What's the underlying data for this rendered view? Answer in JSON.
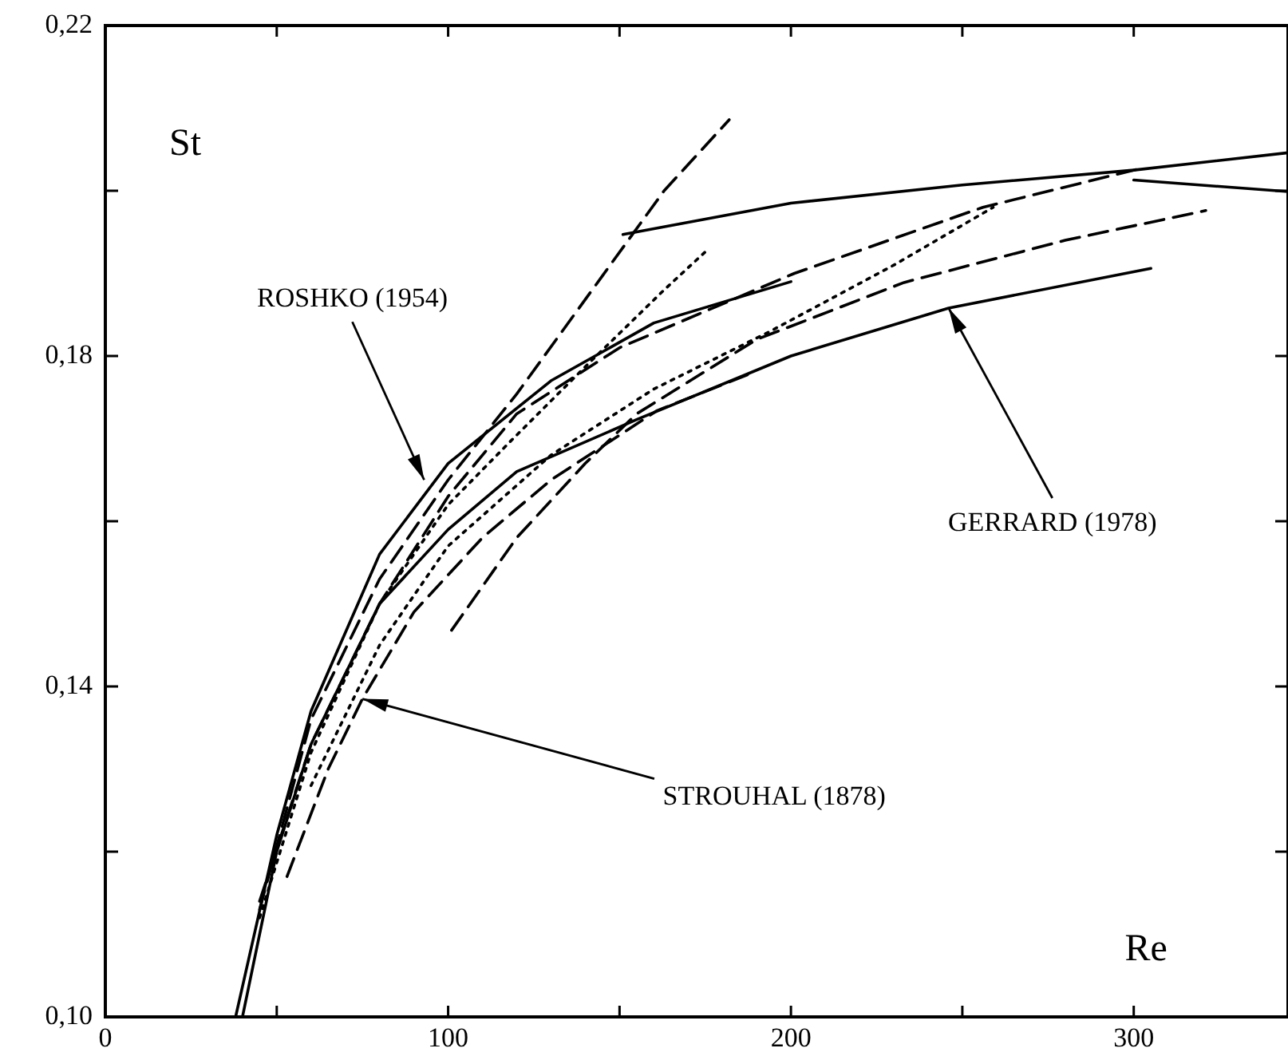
{
  "chart_data": {
    "type": "line",
    "xlabel": "Re",
    "ylabel": "St",
    "xlim": [
      0,
      345
    ],
    "ylim": [
      0.1,
      0.22
    ],
    "xticks": [
      0,
      {
        "value": 50,
        "label": null
      },
      100,
      {
        "value": 150,
        "label": null
      },
      200,
      {
        "value": 250,
        "label": null
      },
      300
    ],
    "yticks": [
      {
        "value": 0.1,
        "label": "0,10"
      },
      {
        "value": 0.12,
        "label": null
      },
      {
        "value": 0.14,
        "label": "0,14"
      },
      {
        "value": 0.16,
        "label": null
      },
      {
        "value": 0.18,
        "label": "0,18"
      },
      {
        "value": 0.2,
        "label": null
      },
      {
        "value": 0.22,
        "label": "0,22"
      }
    ],
    "grid": false,
    "legend": false,
    "marker": "none",
    "series": [
      {
        "color": "#000000",
        "line_style": "solid",
        "x": [
          38,
          50,
          60,
          80,
          100,
          130,
          160,
          200
        ],
        "values": [
          0.1,
          0.122,
          0.137,
          0.156,
          0.167,
          0.177,
          0.184,
          0.189
        ]
      },
      {
        "color": "#000000",
        "line_style": "solid",
        "x": [
          151,
          200,
          250,
          300,
          345
        ],
        "values": [
          0.1947,
          0.1985,
          0.2007,
          0.2025,
          0.2046
        ]
      },
      {
        "color": "#000000",
        "line_style": "solid",
        "x": [
          300,
          345
        ],
        "values": [
          0.2013,
          0.1999
        ]
      },
      {
        "color": "#000000",
        "line_style": "dashed",
        "x": [
          45,
          60,
          80,
          100,
          120,
          145,
          163,
          182
        ],
        "values": [
          0.113,
          0.136,
          0.153,
          0.165,
          0.1754,
          0.1897,
          0.2,
          0.2086
        ]
      },
      {
        "color": "#000000",
        "line_style": "dotted",
        "x": [
          45,
          60,
          80,
          100,
          118,
          140,
          163,
          175
        ],
        "values": [
          0.112,
          0.132,
          0.15,
          0.162,
          0.1696,
          0.1787,
          0.188,
          0.1926
        ]
      },
      {
        "color": "#000000",
        "line_style": "dashed",
        "x": [
          45,
          60,
          80,
          100,
          120,
          150,
          201,
          256,
          301
        ],
        "values": [
          0.114,
          0.133,
          0.15,
          0.163,
          0.173,
          0.181,
          0.19,
          0.198,
          0.2026
        ]
      },
      {
        "color": "#000000",
        "line_style": "dotted",
        "x": [
          60,
          80,
          100,
          130,
          160,
          194,
          230,
          259
        ],
        "values": [
          0.128,
          0.145,
          0.157,
          0.168,
          0.176,
          0.183,
          0.191,
          0.198
        ]
      },
      {
        "color": "#000000",
        "line_style": "dashed",
        "x": [
          101,
          120,
          140,
          155,
          190,
          233,
          280,
          321
        ],
        "values": [
          0.1468,
          0.158,
          0.167,
          0.173,
          0.182,
          0.1889,
          0.194,
          0.1976
        ]
      },
      {
        "color": "#000000",
        "line_style": "solid",
        "x": [
          40,
          50,
          60,
          80,
          100,
          120,
          155,
          200,
          246,
          305
        ],
        "values": [
          0.1,
          0.12,
          0.133,
          0.15,
          0.159,
          0.166,
          0.1723,
          0.18,
          0.1858,
          0.1906
        ]
      },
      {
        "color": "#000000",
        "line_style": "dashed",
        "x": [
          53,
          65,
          75,
          90,
          110,
          130,
          161,
          189
        ],
        "values": [
          0.117,
          0.13,
          0.1385,
          0.149,
          0.158,
          0.165,
          0.1734,
          0.178
        ]
      }
    ],
    "annotations": [
      {
        "text": "ROSHKO (1954)",
        "x": 93,
        "y": 0.165
      },
      {
        "text": "GERRARD (1978)",
        "x": 246,
        "y": 0.1858
      },
      {
        "text": "STROUHAL (1878)",
        "x": 75,
        "y": 0.1385
      }
    ]
  }
}
